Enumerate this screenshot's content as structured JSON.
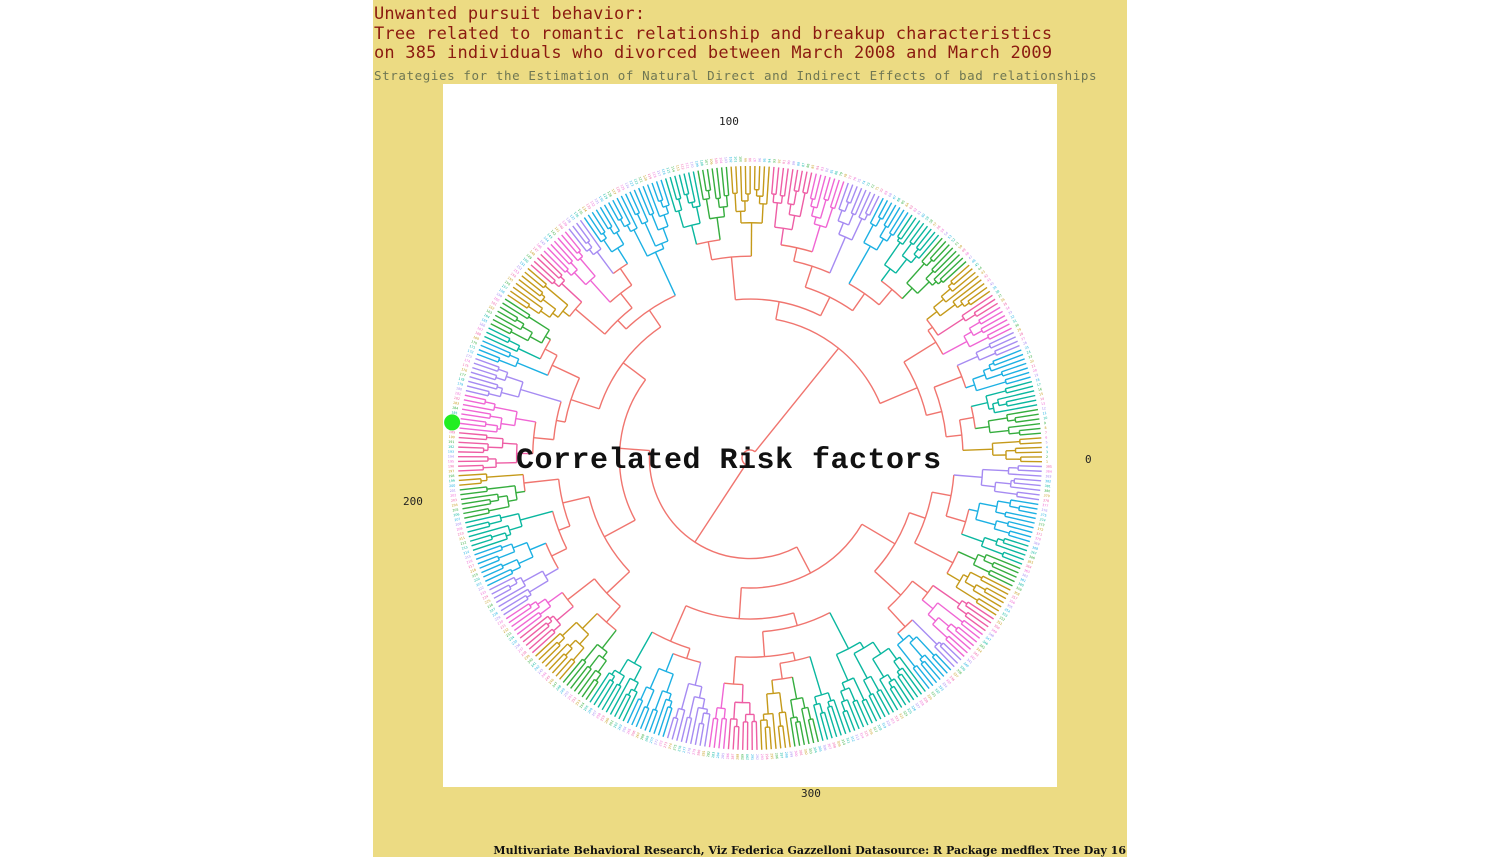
{
  "title": {
    "line1": "Unwanted pursuit behavior:",
    "line2": "Tree related to romantic relationship and breakup characteristics",
    "line3": "on 385 individuals who divorced between March 2008 and March 2009"
  },
  "subtitle": "Strategies for the Estimation of Natural Direct and Indirect Effects of bad relationships",
  "center_title": "Correlated Risk factors",
  "angle_labels": {
    "a0": "0",
    "a100": "100",
    "a200": "200",
    "a300": "300"
  },
  "caption": "Multivariate Behavioral Research, Viz Federica Gazzelloni Datasource: R Package medflex Tree Day 16",
  "colors": {
    "background": "#ecdb83",
    "panel": "#ffffff",
    "title": "#8b1a10",
    "subtitle": "#6f7753",
    "trunk": "#f0756f",
    "palette": [
      "#f0756f",
      "#c59a1a",
      "#35ad3e",
      "#0ab79f",
      "#1cb0e3",
      "#a68bf2",
      "#f066d4",
      "#ee5ea5"
    ],
    "highlight_point": "#22ee22"
  },
  "tree": {
    "type": "circular-dendrogram",
    "leaf_count": 385,
    "highlight_leaf": 186
  }
}
